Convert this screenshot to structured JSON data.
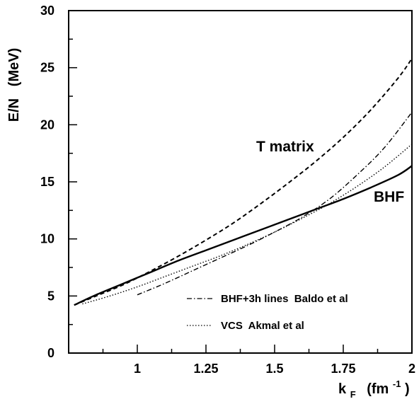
{
  "chart_data": {
    "type": "line",
    "xlabel": {
      "main": "k",
      "sub": "F",
      "unit_open": "(fm",
      "unit_sup": "-1",
      "unit_close": ")"
    },
    "ylabel": "E/N   (MeV)",
    "xlim": [
      0.75,
      2.0
    ],
    "ylim": [
      0,
      30
    ],
    "x_ticks": [
      1,
      1.25,
      1.5,
      1.75,
      2
    ],
    "x_tick_labels": [
      "1",
      "1.25",
      "1.5",
      "1.75",
      "2"
    ],
    "y_ticks": [
      0,
      5,
      10,
      15,
      20,
      25,
      30
    ],
    "y_tick_labels": [
      "0",
      "5",
      "10",
      "15",
      "20",
      "25",
      "30"
    ],
    "grid": false,
    "annotations": [
      "T matrix",
      "BHF"
    ],
    "legend_position": "bottom-right",
    "series": [
      {
        "key": "bhf",
        "style": "solid",
        "x": [
          0.77,
          0.85,
          0.95,
          1.05,
          1.15,
          1.25,
          1.35,
          1.45,
          1.55,
          1.65,
          1.75,
          1.85,
          1.95,
          2.0
        ],
        "y": [
          4.2,
          5.1,
          6.1,
          7.1,
          8.1,
          9.0,
          9.9,
          10.8,
          11.7,
          12.6,
          13.5,
          14.5,
          15.6,
          16.4
        ]
      },
      {
        "key": "tmatrix",
        "style": "dashed",
        "x": [
          0.77,
          0.85,
          0.95,
          1.05,
          1.15,
          1.25,
          1.35,
          1.45,
          1.55,
          1.65,
          1.75,
          1.85,
          1.95,
          2.0
        ],
        "y": [
          4.2,
          5.0,
          6.0,
          7.2,
          8.5,
          9.9,
          11.4,
          13.1,
          14.9,
          16.8,
          18.9,
          21.3,
          24.1,
          25.8
        ]
      },
      {
        "key": "bhf3h",
        "name": "BHF+3h lines  Baldo et al",
        "style": "dashdot",
        "x": [
          1.0,
          1.1,
          1.2,
          1.3,
          1.4,
          1.5,
          1.6,
          1.7,
          1.8,
          1.9,
          2.0
        ],
        "y": [
          5.1,
          6.1,
          7.2,
          8.3,
          9.4,
          10.6,
          11.9,
          13.5,
          15.6,
          18.0,
          21.1
        ]
      },
      {
        "key": "vcs",
        "name": "VCS  Akmal et al",
        "style": "dotted",
        "x": [
          0.8,
          0.9,
          1.0,
          1.1,
          1.2,
          1.3,
          1.4,
          1.5,
          1.6,
          1.7,
          1.8,
          1.9,
          2.0
        ],
        "y": [
          4.3,
          5.0,
          5.8,
          6.7,
          7.6,
          8.5,
          9.5,
          10.6,
          11.8,
          13.1,
          14.6,
          16.3,
          18.3
        ]
      }
    ]
  }
}
